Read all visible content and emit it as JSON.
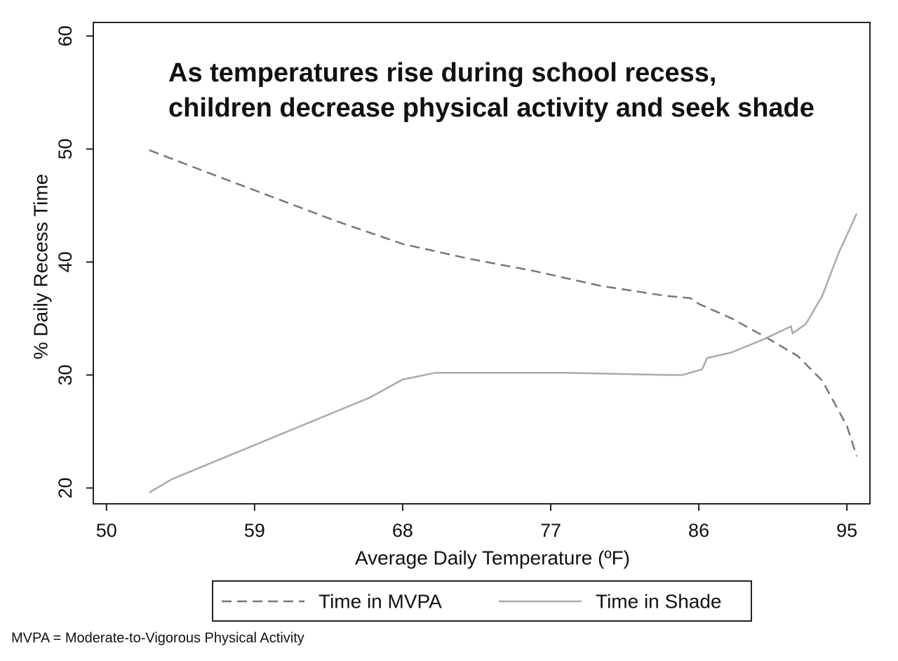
{
  "chart_data": {
    "type": "line",
    "title_lines": [
      "As temperatures rise during school recess,",
      "children decrease physical activity and seek shade"
    ],
    "x_label": "Average Daily Temperature (ºF)",
    "y_label": "% Daily Recess Time",
    "note": "MVPA = Moderate-to-Vigorous Physical Activity",
    "xlim": [
      49.2,
      96.4
    ],
    "xticks": [
      50,
      59,
      68,
      77,
      86,
      95
    ],
    "ylim": [
      18.6,
      61.2
    ],
    "yticks": [
      20,
      30,
      40,
      50,
      60
    ],
    "series": [
      {
        "name": "Time in MVPA",
        "color": "#777777",
        "dash": true,
        "x": [
          52.6,
          56,
          60,
          64,
          68,
          72,
          76,
          80,
          84,
          85.5,
          86,
          88,
          90,
          92,
          93.5,
          95,
          95.6
        ],
        "values": [
          49.9,
          48,
          45.8,
          43.6,
          41.6,
          40.3,
          39.2,
          37.9,
          37.0,
          36.8,
          36.3,
          35.0,
          33.4,
          31.7,
          29.5,
          25.5,
          22.8
        ]
      },
      {
        "name": "Time in Shade",
        "color": "#aaaaaa",
        "dash": false,
        "x": [
          52.6,
          54,
          58,
          62,
          66,
          68,
          70,
          74,
          78,
          84,
          85,
          86.2,
          86.5,
          88,
          90,
          91.6,
          91.7,
          92.5,
          93.5,
          94.5,
          95.6
        ],
        "values": [
          19.6,
          20.8,
          23.2,
          25.6,
          28,
          29.6,
          30.2,
          30.2,
          30.2,
          30.0,
          30.0,
          30.5,
          31.5,
          32.0,
          33.2,
          34.3,
          33.7,
          34.5,
          37,
          40.8,
          44.3
        ]
      }
    ]
  }
}
